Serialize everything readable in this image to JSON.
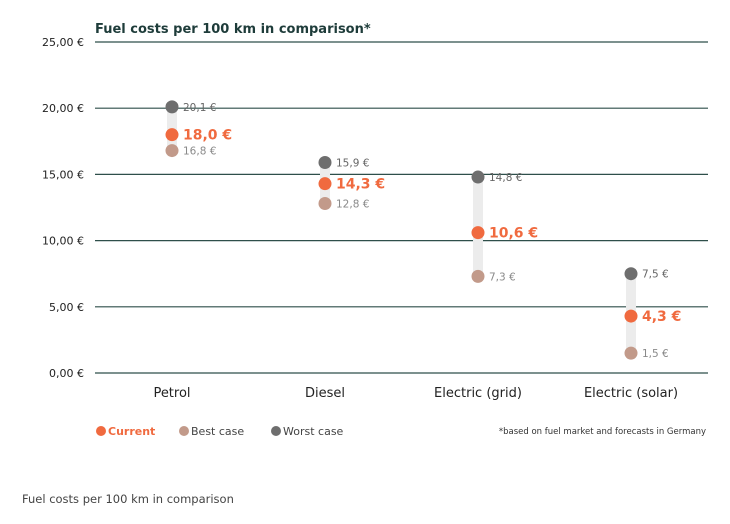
{
  "chart_data": {
    "type": "range-dot",
    "title": "Fuel costs per 100 km in comparison*",
    "y_ticks": [
      "0,00 €",
      "5,00 €",
      "10,00 €",
      "15,00 €",
      "20,00 €",
      "25,00 €"
    ],
    "ylim": [
      0,
      25
    ],
    "grid": true,
    "categories": [
      "Petrol",
      "Diesel",
      "Electric (grid)",
      "Electric (solar)"
    ],
    "series": [
      {
        "name": "Current",
        "color": "#f06a3f",
        "values": [
          18.0,
          14.3,
          10.6,
          4.3
        ],
        "labels": [
          "18,0 €",
          "14,3 €",
          "10,6 €",
          "4,3 €"
        ]
      },
      {
        "name": "Best case",
        "color": "#c29a8a",
        "values": [
          16.8,
          12.8,
          7.3,
          1.5
        ],
        "labels": [
          "16,8 €",
          "12,8 €",
          "7,3 €",
          "1,5 €"
        ]
      },
      {
        "name": "Worst case",
        "color": "#6e6e6e",
        "values": [
          20.1,
          15.9,
          14.8,
          7.5
        ],
        "labels": [
          "20,1 €",
          "15,9 €",
          "14,8 €",
          "7,5 €"
        ]
      }
    ],
    "legend_position": "bottom-left",
    "footnote": "*based on fuel market and forecasts in Germany"
  },
  "caption": "Fuel costs per 100 km in comparison"
}
